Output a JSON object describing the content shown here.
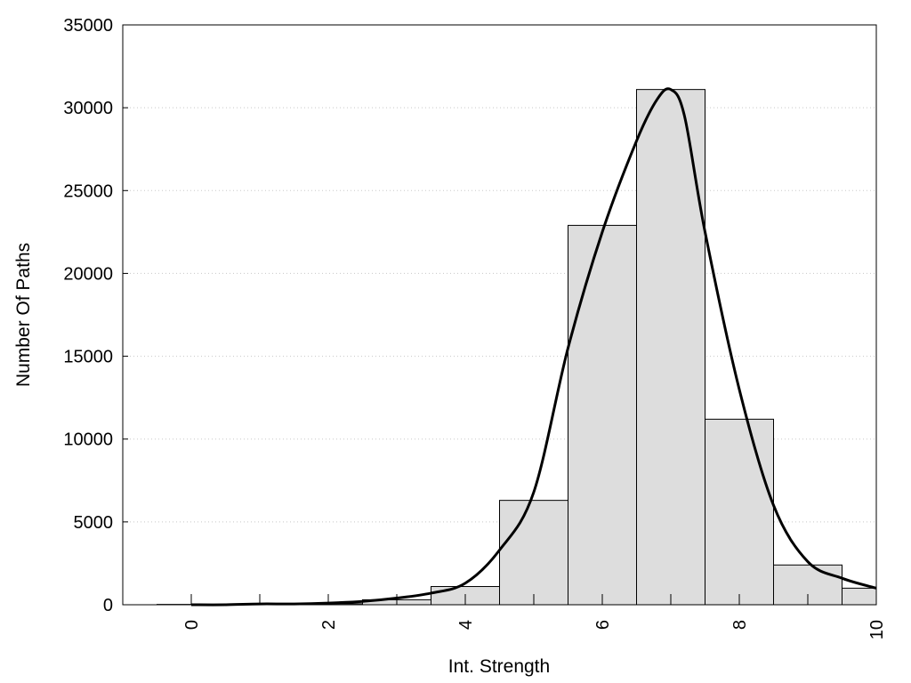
{
  "chart_data": {
    "type": "bar",
    "title": "",
    "xlabel": "Int. Strength",
    "ylabel": "Number Of Paths",
    "xlim": [
      -1,
      10
    ],
    "ylim": [
      0,
      35000
    ],
    "x_ticks": [
      0,
      2,
      4,
      6,
      8,
      10
    ],
    "y_ticks": [
      0,
      5000,
      10000,
      15000,
      20000,
      25000,
      30000,
      35000
    ],
    "grid": "y-dotted",
    "bin_width": 1,
    "bars": {
      "x": [
        0,
        1,
        2,
        3,
        4,
        5,
        6,
        7,
        8,
        9,
        10
      ],
      "values": [
        20,
        30,
        60,
        300,
        1100,
        6300,
        22900,
        31100,
        11200,
        2400,
        1000
      ],
      "fill": "#dddddd",
      "stroke": "#000000"
    },
    "curve": {
      "x": [
        0,
        0.5,
        1,
        1.5,
        2,
        2.5,
        3,
        3.5,
        4,
        4.5,
        5,
        5.5,
        6,
        6.5,
        6.8,
        7,
        7.2,
        7.5,
        8,
        8.5,
        9,
        9.5,
        10
      ],
      "values": [
        0,
        0,
        50,
        50,
        100,
        200,
        400,
        700,
        1300,
        3300,
        6800,
        15500,
        22500,
        28000,
        30500,
        31100,
        29500,
        22500,
        13000,
        6000,
        2600,
        1600,
        1000
      ],
      "stroke": "#000000"
    }
  }
}
